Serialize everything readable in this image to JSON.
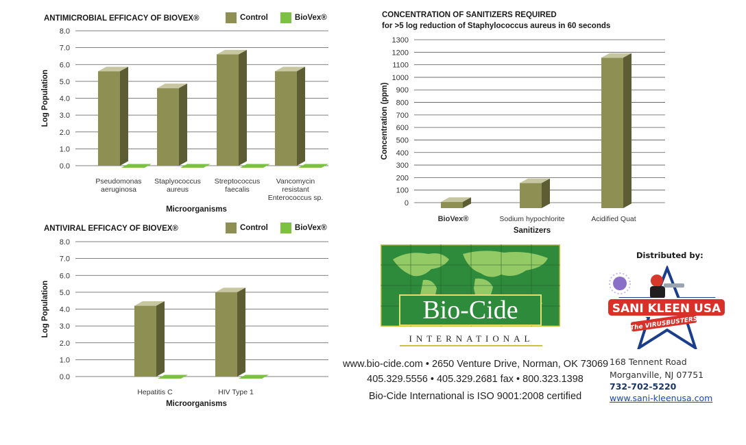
{
  "chart_data": [
    {
      "type": "bar",
      "title": "ANTIMICROBIAL EFFICACY OF BIOVEX®",
      "xlabel": "Microorganisms",
      "ylabel": "Log Population",
      "ylim": [
        0,
        8
      ],
      "yticks": [
        "0.0",
        "1.0",
        "2.0",
        "3.0",
        "4.0",
        "5.0",
        "6.0",
        "7.0",
        "8.0"
      ],
      "categories": [
        [
          "Pseudomonas",
          "aeruginosa"
        ],
        [
          "Staplyococcus",
          "aureus"
        ],
        [
          "Streptococcus",
          "faecalis"
        ],
        [
          "Vancomycin",
          "resistant",
          "Enterococcus sp."
        ]
      ],
      "series": [
        {
          "name": "Control",
          "values": [
            5.6,
            4.6,
            6.6,
            5.6
          ]
        },
        {
          "name": "BioVex®",
          "values": [
            0,
            0,
            0,
            0
          ]
        }
      ],
      "grid": true,
      "legend": "top-right"
    },
    {
      "type": "bar",
      "title": "ANTIVIRAL EFFICACY OF BIOVEX®",
      "xlabel": "Microorganisms",
      "ylabel": "Log Population",
      "ylim": [
        0,
        8
      ],
      "yticks": [
        "0.0",
        "1.0",
        "2.0",
        "3.0",
        "4.0",
        "5.0",
        "6.0",
        "7.0",
        "8.0"
      ],
      "categories": [
        [
          "Hepatitis C"
        ],
        [
          "HIV Type 1"
        ]
      ],
      "series": [
        {
          "name": "Control",
          "values": [
            4.2,
            5.0
          ]
        },
        {
          "name": "BioVex®",
          "values": [
            0,
            0
          ]
        }
      ],
      "grid": true,
      "legend": "top-right"
    },
    {
      "type": "bar",
      "title": "CONCENTRATION OF SANITIZERS REQUIRED",
      "subtitle": "for >5 log reduction of Staphylococcus aureus in 60 seconds",
      "xlabel": "Sanitizers",
      "ylabel": "Concentration (ppm)",
      "ylim": [
        0,
        1300
      ],
      "yticks": [
        "0",
        "100",
        "200",
        "300",
        "400",
        "500",
        "600",
        "700",
        "800",
        "900",
        "1000",
        "1100",
        "1200",
        "1300"
      ],
      "categories": [
        [
          "BioVex®"
        ],
        [
          "Sodium hypochlorite"
        ],
        [
          "Acidified Quat"
        ]
      ],
      "values": [
        50,
        200,
        1200
      ],
      "grid": true
    }
  ],
  "legend": {
    "control": "Control",
    "biovex": "BioVex®"
  },
  "colors": {
    "control_front": "#8e8f53",
    "control_top": "#c6c6a0",
    "control_side": "#5c5d33",
    "biovex": "#7cc142",
    "grid": "#555555",
    "logo_green": "#2e8b3c"
  },
  "logo": {
    "name": "Bio-Cide",
    "subtitle": "INTERNATIONAL"
  },
  "contact": {
    "line1": "www.bio-cide.com • 2650 Venture Drive, Norman, OK 73069",
    "line2": "405.329.5556 • 405.329.2681 fax • 800.323.1398",
    "line3": "Bio-Cide International is ISO 9001:2008 certified"
  },
  "distributor": {
    "label": "Distributed by:",
    "logo_text": "SANI KLEEN USA",
    "logo_tagline": "The VIRUSBUSTERS",
    "address1": "168 Tennent Road",
    "address2": "Morganville, NJ 07751",
    "phone": "732-702-5220",
    "url": "www.sani-kleenusa.com"
  }
}
